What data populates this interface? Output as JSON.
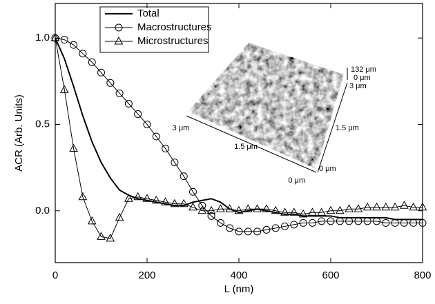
{
  "chart_data": {
    "type": "line",
    "xlabel": "L (nm)",
    "ylabel": "ACR (Arb. Units)",
    "x": [
      0,
      20,
      40,
      60,
      80,
      100,
      120,
      140,
      160,
      180,
      200,
      220,
      240,
      260,
      280,
      300,
      320,
      340,
      360,
      380,
      400,
      420,
      440,
      460,
      480,
      500,
      520,
      540,
      560,
      580,
      600,
      620,
      640,
      660,
      680,
      700,
      720,
      740,
      760,
      780,
      800
    ],
    "series": [
      {
        "name": "Total",
        "color": "#000000",
        "marker": "none",
        "values": [
          1.0,
          0.88,
          0.72,
          0.55,
          0.4,
          0.28,
          0.19,
          0.12,
          0.09,
          0.07,
          0.06,
          0.05,
          0.04,
          0.03,
          0.03,
          0.05,
          0.06,
          0.07,
          0.05,
          0.01,
          -0.01,
          0.0,
          0.01,
          0.0,
          -0.01,
          -0.02,
          -0.02,
          -0.03,
          -0.03,
          -0.03,
          -0.03,
          -0.04,
          -0.04,
          -0.04,
          -0.04,
          -0.04,
          -0.04,
          -0.05,
          -0.05,
          -0.05,
          -0.05
        ]
      },
      {
        "name": "Macrostructures",
        "color": "#000000",
        "marker": "circle",
        "values": [
          1.0,
          0.99,
          0.96,
          0.91,
          0.86,
          0.8,
          0.74,
          0.68,
          0.62,
          0.56,
          0.5,
          0.43,
          0.36,
          0.28,
          0.2,
          0.11,
          0.03,
          -0.03,
          -0.07,
          -0.1,
          -0.12,
          -0.12,
          -0.12,
          -0.11,
          -0.1,
          -0.09,
          -0.08,
          -0.07,
          -0.07,
          -0.06,
          -0.06,
          -0.06,
          -0.06,
          -0.06,
          -0.06,
          -0.06,
          -0.07,
          -0.07,
          -0.07,
          -0.07,
          -0.07
        ]
      },
      {
        "name": "Microstructures",
        "color": "#000000",
        "marker": "triangle",
        "values": [
          1.0,
          0.7,
          0.36,
          0.08,
          -0.06,
          -0.15,
          -0.16,
          -0.04,
          0.07,
          0.08,
          0.07,
          0.06,
          0.05,
          0.04,
          0.04,
          0.02,
          0.0,
          0.0,
          0.01,
          0.01,
          0.0,
          0.01,
          0.01,
          0.01,
          0.0,
          -0.01,
          -0.01,
          -0.02,
          -0.01,
          -0.01,
          0.0,
          0.0,
          0.01,
          0.01,
          0.02,
          0.02,
          0.02,
          0.02,
          0.03,
          0.02,
          0.02
        ]
      }
    ],
    "xlim": [
      0,
      800
    ],
    "xticks": [
      0,
      200,
      400,
      600,
      800
    ],
    "ylim": [
      -0.3,
      1.2
    ],
    "yticks": [
      {
        "value": 0,
        "label": "0.0"
      },
      {
        "value": 0.5,
        "label": "0.5"
      },
      {
        "value": 1,
        "label": "1.0"
      }
    ],
    "legend": "upper left",
    "annotations": [
      "132 μm",
      "0 μm",
      "3 μm",
      "1.5 μm",
      "0 μm",
      "0 μm",
      "1.5 μm",
      "3 μm"
    ]
  }
}
